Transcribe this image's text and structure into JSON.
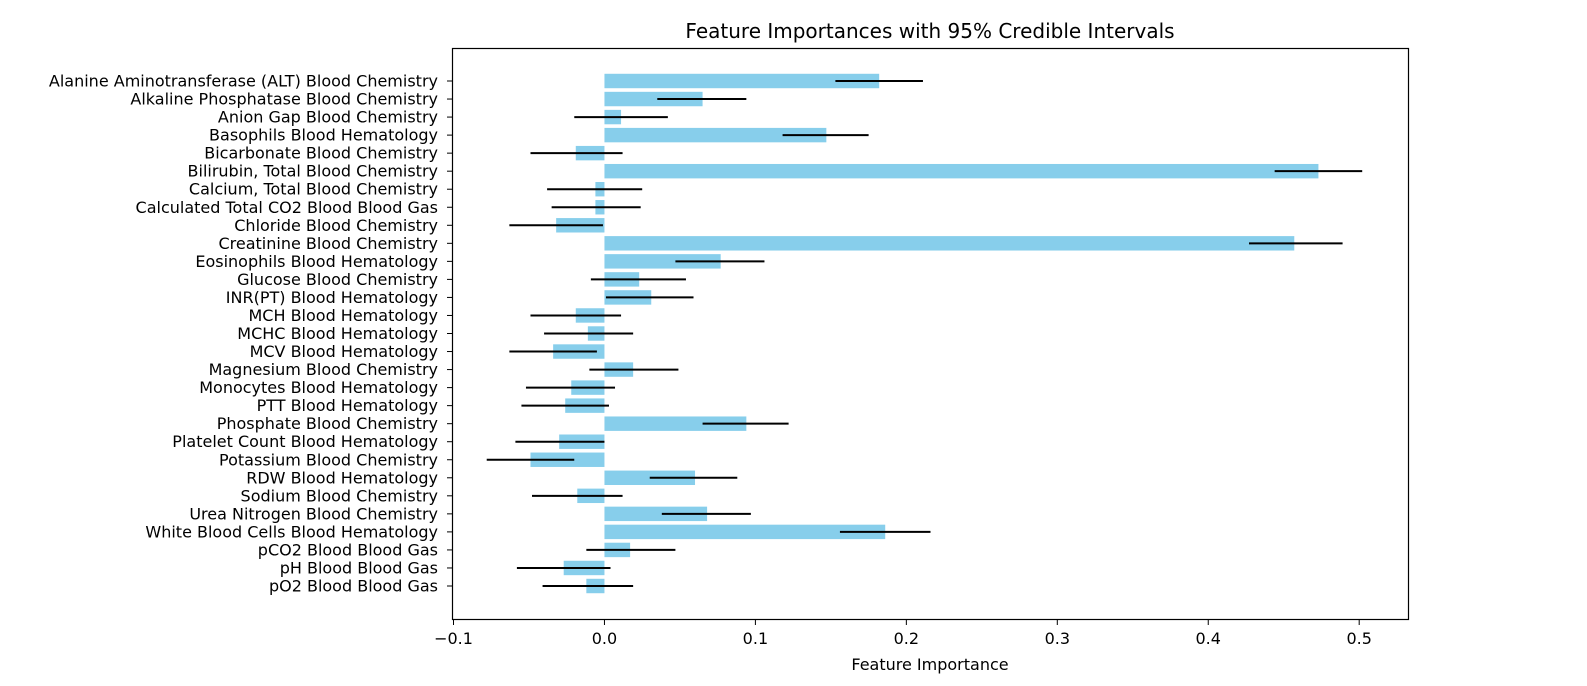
{
  "chart_data": {
    "type": "bar",
    "orientation": "horizontal",
    "title": "Feature Importances with 95% Credible Intervals",
    "xlabel": "Feature Importance",
    "ylabel": "",
    "xlim": [
      -0.101,
      0.533
    ],
    "xticks": [
      -0.1,
      0.0,
      0.1,
      0.2,
      0.3,
      0.4,
      0.5
    ],
    "xtick_labels": [
      "−0.1",
      "0.0",
      "0.1",
      "0.2",
      "0.3",
      "0.4",
      "0.5"
    ],
    "grid": false,
    "bar_color": "#87ceeb",
    "error_bar_color": "#000000",
    "categories": [
      "Alanine Aminotransferase (ALT) Blood Chemistry",
      "Alkaline Phosphatase Blood Chemistry",
      "Anion Gap Blood Chemistry",
      "Basophils Blood Hematology",
      "Bicarbonate Blood Chemistry",
      "Bilirubin, Total Blood Chemistry",
      "Calcium, Total Blood Chemistry",
      "Calculated Total CO2 Blood Blood Gas",
      "Chloride Blood Chemistry",
      "Creatinine Blood Chemistry",
      "Eosinophils Blood Hematology",
      "Glucose Blood Chemistry",
      "INR(PT) Blood Hematology",
      "MCH Blood Hematology",
      "MCHC Blood Hematology",
      "MCV Blood Hematology",
      "Magnesium Blood Chemistry",
      "Monocytes Blood Hematology",
      "PTT Blood Hematology",
      "Phosphate Blood Chemistry",
      "Platelet Count Blood Hematology",
      "Potassium Blood Chemistry",
      "RDW Blood Hematology",
      "Sodium Blood Chemistry",
      "Urea Nitrogen Blood Chemistry",
      "White Blood Cells Blood Hematology",
      "pCO2 Blood Blood Gas",
      "pH Blood Blood Gas",
      "pO2 Blood Blood Gas"
    ],
    "values": [
      0.182,
      0.065,
      0.011,
      0.147,
      -0.019,
      0.473,
      -0.006,
      -0.006,
      -0.032,
      0.457,
      0.077,
      0.023,
      0.031,
      -0.019,
      -0.011,
      -0.034,
      0.019,
      -0.022,
      -0.026,
      0.094,
      -0.03,
      -0.049,
      0.06,
      -0.018,
      0.068,
      0.186,
      0.017,
      -0.027,
      -0.012
    ],
    "ci_lower": [
      0.153,
      0.035,
      -0.02,
      0.118,
      -0.049,
      0.444,
      -0.038,
      -0.035,
      -0.063,
      0.427,
      0.047,
      -0.009,
      0.001,
      -0.049,
      -0.04,
      -0.063,
      -0.01,
      -0.052,
      -0.055,
      0.065,
      -0.059,
      -0.078,
      0.03,
      -0.048,
      0.038,
      0.156,
      -0.012,
      -0.058,
      -0.041
    ],
    "ci_upper": [
      0.211,
      0.094,
      0.042,
      0.175,
      0.012,
      0.502,
      0.025,
      0.024,
      -0.001,
      0.489,
      0.106,
      0.054,
      0.059,
      0.011,
      0.019,
      -0.005,
      0.049,
      0.007,
      0.003,
      0.122,
      0.0,
      -0.02,
      0.088,
      0.012,
      0.097,
      0.216,
      0.047,
      0.004,
      0.019
    ]
  }
}
